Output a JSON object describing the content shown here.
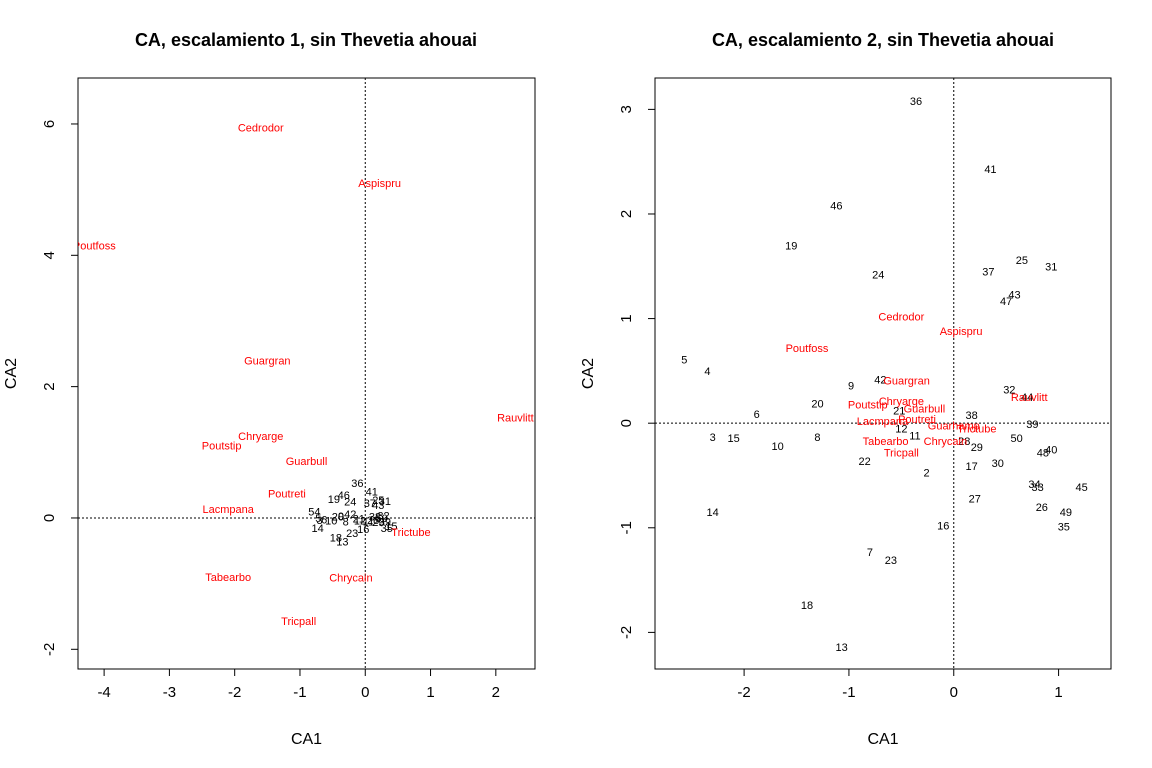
{
  "chart_data": [
    {
      "type": "scatter",
      "title": "CA, escalamiento 1, sin Thevetia ahouai",
      "xlabel": "CA1",
      "ylabel": "CA2",
      "xlim": [
        -4.4,
        2.6
      ],
      "ylim": [
        -2.3,
        6.7
      ],
      "xticks": [
        -4,
        -3,
        -2,
        -1,
        0,
        1,
        2
      ],
      "yticks": [
        -2,
        0,
        2,
        4,
        6
      ],
      "reference_lines": {
        "x": 0,
        "y": 0,
        "style": "dotted"
      },
      "grid": false,
      "legend": "none",
      "site_color": "#000000",
      "species_color": "#ff0000",
      "species": [
        {
          "label": "Cedrodor",
          "x": -1.6,
          "y": 5.95
        },
        {
          "label": "Aspispru",
          "x": 0.22,
          "y": 5.1
        },
        {
          "label": "Poutfoss",
          "x": -4.15,
          "y": 4.15
        },
        {
          "label": "Guargran",
          "x": -1.5,
          "y": 2.4
        },
        {
          "label": "Rauvlitt",
          "x": 2.3,
          "y": 1.53
        },
        {
          "label": "Chryarge",
          "x": -1.6,
          "y": 1.25
        },
        {
          "label": "Poutstip",
          "x": -2.2,
          "y": 1.1
        },
        {
          "label": "Guarbull",
          "x": -0.9,
          "y": 0.87
        },
        {
          "label": "Poutreti",
          "x": -1.2,
          "y": 0.37
        },
        {
          "label": "Lacmpana",
          "x": -2.1,
          "y": 0.14
        },
        {
          "label": "Trictube",
          "x": 0.7,
          "y": -0.21
        },
        {
          "label": "Tabearbo",
          "x": -2.1,
          "y": -0.9
        },
        {
          "label": "Chrycain",
          "x": -0.22,
          "y": -0.91
        },
        {
          "label": "Tricpall",
          "x": -1.02,
          "y": -1.57
        }
      ],
      "sites": [
        {
          "label": "36",
          "x": -0.12,
          "y": 0.53
        },
        {
          "label": "41",
          "x": 0.1,
          "y": 0.4
        },
        {
          "label": "46",
          "x": -0.33,
          "y": 0.35
        },
        {
          "label": "19",
          "x": -0.48,
          "y": 0.29
        },
        {
          "label": "24",
          "x": -0.23,
          "y": 0.25
        },
        {
          "label": "37",
          "x": 0.07,
          "y": 0.23
        },
        {
          "label": "25",
          "x": 0.2,
          "y": 0.27
        },
        {
          "label": "31",
          "x": 0.3,
          "y": 0.26
        },
        {
          "label": "43",
          "x": 0.2,
          "y": 0.2
        },
        {
          "label": "54",
          "x": -0.78,
          "y": 0.1
        },
        {
          "label": "42",
          "x": -0.23,
          "y": 0.06
        },
        {
          "label": "9",
          "x": -0.37,
          "y": 0.03
        },
        {
          "label": "20",
          "x": -0.42,
          "y": 0.02
        },
        {
          "label": "38",
          "x": 0.15,
          "y": 0.02
        },
        {
          "label": "5",
          "x": -0.72,
          "y": 0.0
        },
        {
          "label": "6",
          "x": -0.63,
          "y": -0.02
        },
        {
          "label": "3",
          "x": -0.7,
          "y": -0.03
        },
        {
          "label": "10",
          "x": -0.52,
          "y": -0.04
        },
        {
          "label": "8",
          "x": -0.3,
          "y": -0.05
        },
        {
          "label": "12",
          "x": -0.08,
          "y": -0.04
        },
        {
          "label": "21",
          "x": -0.1,
          "y": -0.01
        },
        {
          "label": "11",
          "x": 0.05,
          "y": -0.05
        },
        {
          "label": "28",
          "x": 0.12,
          "y": -0.03
        },
        {
          "label": "29",
          "x": 0.2,
          "y": -0.06
        },
        {
          "label": "50",
          "x": 0.25,
          "y": 0.0
        },
        {
          "label": "32",
          "x": 0.28,
          "y": 0.04
        },
        {
          "label": "39",
          "x": 0.3,
          "y": -0.05
        },
        {
          "label": "15",
          "x": 0.4,
          "y": -0.12
        },
        {
          "label": "14",
          "x": -0.73,
          "y": -0.15
        },
        {
          "label": "16",
          "x": -0.03,
          "y": -0.17
        },
        {
          "label": "35",
          "x": 0.33,
          "y": -0.15
        },
        {
          "label": "23",
          "x": -0.2,
          "y": -0.23
        },
        {
          "label": "18",
          "x": -0.45,
          "y": -0.3
        },
        {
          "label": "13",
          "x": -0.35,
          "y": -0.36
        }
      ]
    },
    {
      "type": "scatter",
      "title": "CA, escalamiento 2, sin Thevetia ahouai",
      "xlabel": "CA1",
      "ylabel": "CA2",
      "xlim": [
        -2.85,
        1.5
      ],
      "ylim": [
        -2.35,
        3.3
      ],
      "xticks": [
        -2,
        -1,
        0,
        1
      ],
      "yticks": [
        -2,
        -1,
        0,
        1,
        2,
        3
      ],
      "reference_lines": {
        "x": 0,
        "y": 0,
        "style": "dotted"
      },
      "grid": false,
      "legend": "none",
      "site_color": "#000000",
      "species_color": "#ff0000",
      "species": [
        {
          "label": "Cedrodor",
          "x": -0.5,
          "y": 1.02
        },
        {
          "label": "Aspispru",
          "x": 0.07,
          "y": 0.88
        },
        {
          "label": "Poutfoss",
          "x": -1.4,
          "y": 0.72
        },
        {
          "label": "Guargran",
          "x": -0.45,
          "y": 0.41
        },
        {
          "label": "Rauvlitt",
          "x": 0.72,
          "y": 0.25
        },
        {
          "label": "Chryarge",
          "x": -0.5,
          "y": 0.21
        },
        {
          "label": "Poutstip",
          "x": -0.82,
          "y": 0.18
        },
        {
          "label": "Guarbull",
          "x": -0.28,
          "y": 0.14
        },
        {
          "label": "Poutreti",
          "x": -0.35,
          "y": 0.04
        },
        {
          "label": "Lacmpana",
          "x": -0.68,
          "y": 0.02
        },
        {
          "label": "Guarhamp",
          "x": 0.0,
          "y": -0.02
        },
        {
          "label": "Trictube",
          "x": 0.22,
          "y": -0.05
        },
        {
          "label": "Tabearbo",
          "x": -0.65,
          "y": -0.17
        },
        {
          "label": "Chrycain",
          "x": -0.08,
          "y": -0.17
        },
        {
          "label": "Tricpall",
          "x": -0.5,
          "y": -0.28
        }
      ],
      "sites": [
        {
          "label": "36",
          "x": -0.36,
          "y": 3.08
        },
        {
          "label": "41",
          "x": 0.35,
          "y": 2.43
        },
        {
          "label": "46",
          "x": -1.12,
          "y": 2.08
        },
        {
          "label": "19",
          "x": -1.55,
          "y": 1.7
        },
        {
          "label": "25",
          "x": 0.65,
          "y": 1.56
        },
        {
          "label": "31",
          "x": 0.93,
          "y": 1.5
        },
        {
          "label": "37",
          "x": 0.33,
          "y": 1.45
        },
        {
          "label": "24",
          "x": -0.72,
          "y": 1.42
        },
        {
          "label": "43",
          "x": 0.58,
          "y": 1.23
        },
        {
          "label": "47",
          "x": 0.5,
          "y": 1.17
        },
        {
          "label": "5",
          "x": -2.57,
          "y": 0.61
        },
        {
          "label": "4",
          "x": -2.35,
          "y": 0.5
        },
        {
          "label": "42",
          "x": -0.7,
          "y": 0.42
        },
        {
          "label": "9",
          "x": -0.98,
          "y": 0.36
        },
        {
          "label": "32",
          "x": 0.53,
          "y": 0.32
        },
        {
          "label": "44",
          "x": 0.7,
          "y": 0.25
        },
        {
          "label": "20",
          "x": -1.3,
          "y": 0.19
        },
        {
          "label": "6",
          "x": -1.88,
          "y": 0.09
        },
        {
          "label": "21",
          "x": -0.52,
          "y": 0.12
        },
        {
          "label": "38",
          "x": 0.17,
          "y": 0.08
        },
        {
          "label": "39",
          "x": 0.75,
          "y": -0.01
        },
        {
          "label": "12",
          "x": -0.5,
          "y": -0.05
        },
        {
          "label": "3",
          "x": -2.3,
          "y": -0.13
        },
        {
          "label": "15",
          "x": -2.1,
          "y": -0.14
        },
        {
          "label": "8",
          "x": -1.3,
          "y": -0.13
        },
        {
          "label": "11",
          "x": -0.37,
          "y": -0.12
        },
        {
          "label": "50",
          "x": 0.6,
          "y": -0.14
        },
        {
          "label": "28",
          "x": 0.1,
          "y": -0.17
        },
        {
          "label": "10",
          "x": -1.68,
          "y": -0.22
        },
        {
          "label": "29",
          "x": 0.22,
          "y": -0.23
        },
        {
          "label": "40",
          "x": 0.93,
          "y": -0.25
        },
        {
          "label": "48",
          "x": 0.85,
          "y": -0.28
        },
        {
          "label": "22",
          "x": -0.85,
          "y": -0.36
        },
        {
          "label": "30",
          "x": 0.42,
          "y": -0.38
        },
        {
          "label": "17",
          "x": 0.17,
          "y": -0.41
        },
        {
          "label": "2",
          "x": -0.26,
          "y": -0.47
        },
        {
          "label": "34",
          "x": 0.77,
          "y": -0.58
        },
        {
          "label": "33",
          "x": 0.8,
          "y": -0.61
        },
        {
          "label": "45",
          "x": 1.22,
          "y": -0.61
        },
        {
          "label": "27",
          "x": 0.2,
          "y": -0.72
        },
        {
          "label": "26",
          "x": 0.84,
          "y": -0.8
        },
        {
          "label": "49",
          "x": 1.07,
          "y": -0.85
        },
        {
          "label": "14",
          "x": -2.3,
          "y": -0.85
        },
        {
          "label": "35",
          "x": 1.05,
          "y": -0.99
        },
        {
          "label": "16",
          "x": -0.1,
          "y": -0.98
        },
        {
          "label": "7",
          "x": -0.8,
          "y": -1.23
        },
        {
          "label": "23",
          "x": -0.6,
          "y": -1.31
        },
        {
          "label": "18",
          "x": -1.4,
          "y": -1.74
        },
        {
          "label": "13",
          "x": -1.07,
          "y": -2.14
        }
      ]
    }
  ]
}
